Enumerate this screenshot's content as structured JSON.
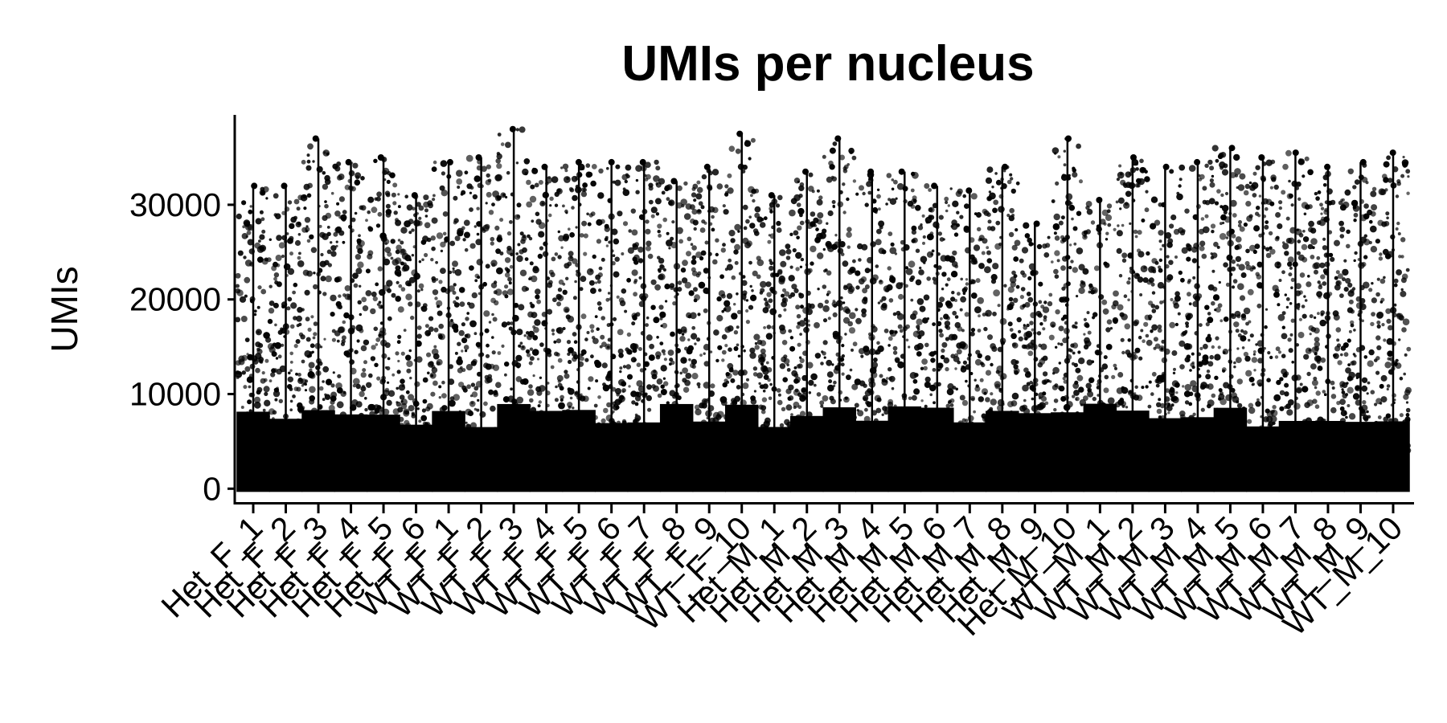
{
  "chart_data": {
    "type": "scatter",
    "title": "UMIs per nucleus",
    "xlabel": "",
    "ylabel": "UMIs",
    "ylim": [
      -1500,
      39500
    ],
    "yticks": [
      0,
      10000,
      20000,
      30000
    ],
    "grid": false,
    "legend": "none",
    "point_color": "#000000",
    "categories": [
      "Het_F_1",
      "Het_F_2",
      "Het_F_3",
      "Het_F_4",
      "Het_F_5",
      "Het_F_6",
      "WT_F_1",
      "WT_F_2",
      "WT_F_3",
      "WT_F_4",
      "WT_F_5",
      "WT_F_6",
      "WT_F_7",
      "WT_F_8",
      "WT_F_9",
      "WT_F_10",
      "Het_M_1",
      "Het_M_2",
      "Het_M_3",
      "Het_M_4",
      "Het_M_5",
      "Het_M_6",
      "Het_M_7",
      "Het_M_8",
      "Het_M_9",
      "Het_M_10",
      "WT_M_1",
      "WT_M_2",
      "WT_M_3",
      "WT_M_4",
      "WT_M_5",
      "WT_M_6",
      "WT_M_7",
      "WT_M_8",
      "WT_M_9",
      "WT_M_10"
    ],
    "max_values": [
      32000,
      32000,
      37000,
      34500,
      35000,
      31000,
      34500,
      35000,
      38000,
      34000,
      34500,
      34500,
      34500,
      32500,
      34000,
      37500,
      31000,
      33500,
      37000,
      33500,
      33500,
      32000,
      31500,
      34000,
      28000,
      37000,
      30500,
      35000,
      34000,
      34500,
      36000,
      35000,
      35500,
      34000,
      34500,
      35500
    ]
  }
}
